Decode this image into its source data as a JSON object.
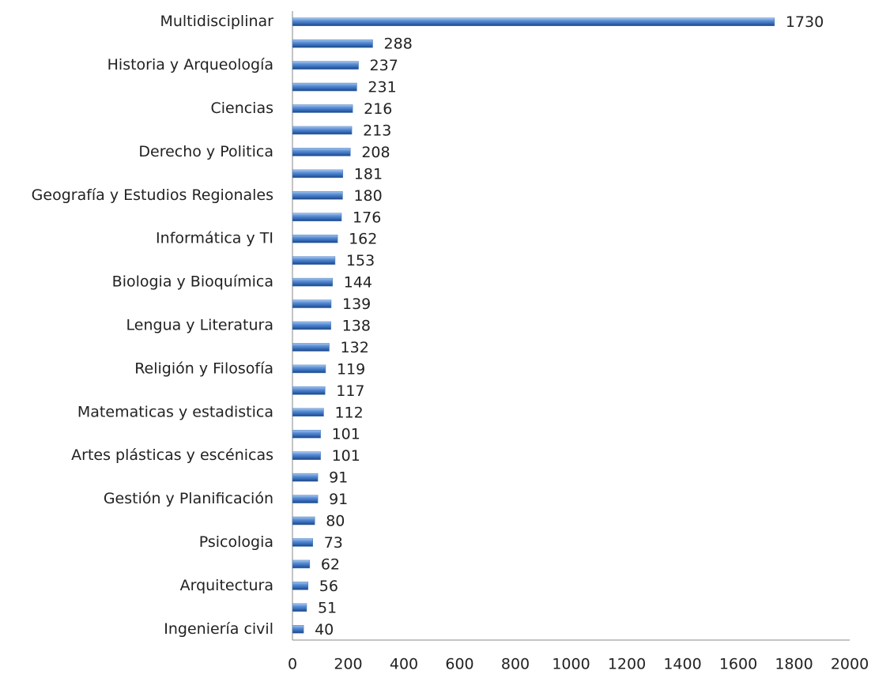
{
  "chart_data": {
    "type": "bar",
    "orientation": "horizontal",
    "categories": [
      "Multidisciplinar",
      null,
      "Historia y Arqueología",
      null,
      "Ciencias",
      null,
      "Derecho y Politica",
      null,
      "Geografía y Estudios Regionales",
      null,
      "Informática y TI",
      null,
      "Biologia y Bioquímica",
      null,
      "Lengua y Literatura",
      null,
      "Religión y Filosofía",
      null,
      "Matematicas y estadistica",
      null,
      "Artes plásticas y escénicas",
      null,
      "Gestión y Planificación",
      null,
      "Psicologia",
      null,
      "Arquitectura",
      null,
      "Ingeniería civil"
    ],
    "values": [
      1730,
      288,
      237,
      231,
      216,
      213,
      208,
      181,
      180,
      176,
      162,
      153,
      144,
      139,
      138,
      132,
      119,
      117,
      112,
      101,
      101,
      91,
      91,
      80,
      73,
      62,
      56,
      51,
      40
    ],
    "color": "#4a7ebb",
    "xlim": [
      0,
      2000
    ],
    "xticks": [
      0,
      200,
      400,
      600,
      800,
      1000,
      1200,
      1400,
      1600,
      1800,
      2000
    ],
    "grid": false
  }
}
